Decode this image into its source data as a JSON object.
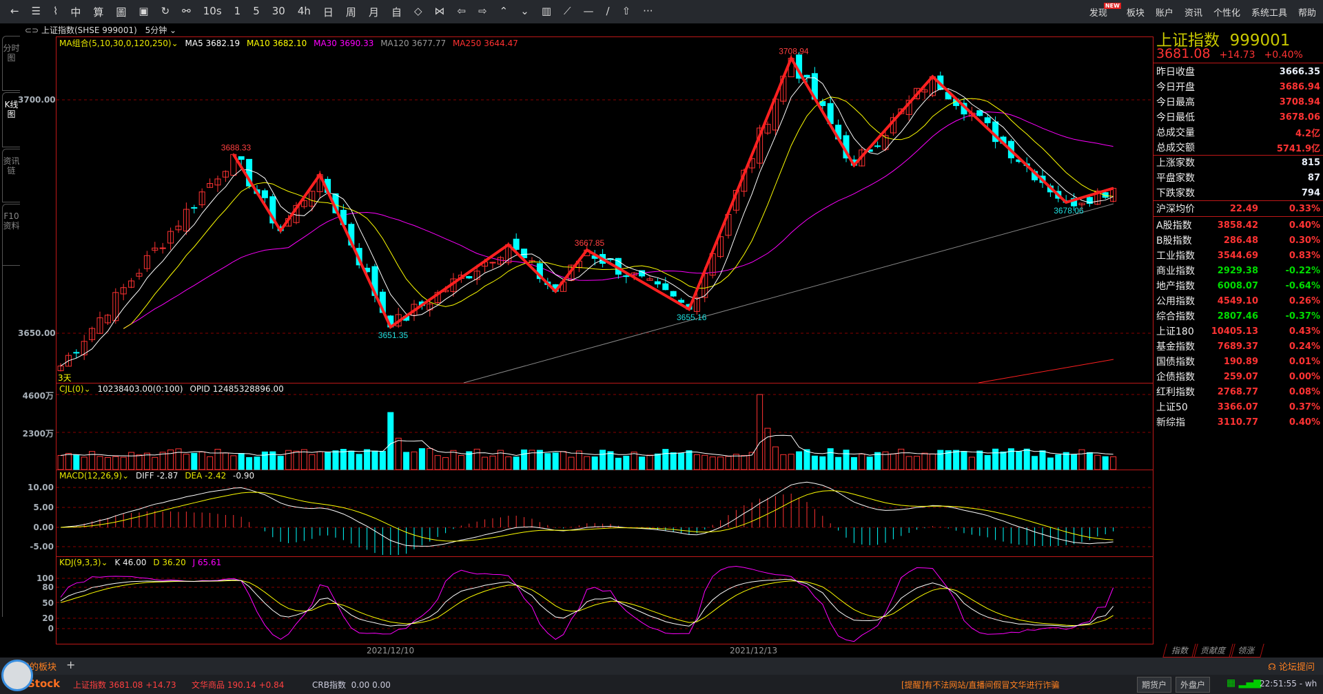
{
  "toolbar": {
    "items": [
      "←",
      "☰",
      "⌇",
      "中",
      "算",
      "圖",
      "▣",
      "↻",
      "⚯",
      "10s",
      "1",
      "5",
      "30",
      "4h",
      "日",
      "周",
      "月",
      "自",
      "◇",
      "⋈",
      "⇦",
      "⇨",
      "⌃",
      "⌄",
      "▥",
      "⟋",
      "—",
      "∕",
      "⇧",
      "···"
    ],
    "menu": [
      "发现",
      "板块",
      "账户",
      "资讯",
      "个性化",
      "系统工具",
      "帮助"
    ],
    "new_badge": "NEW"
  },
  "title_row": {
    "link_icon": "⊂⊃",
    "symbol": "上证指数(SHSE 999001)",
    "period": "5分钟"
  },
  "left_tabs": [
    "分时图",
    "K线图",
    "资讯链",
    "F10资料"
  ],
  "main_legend": {
    "combo": "MA组合(5,10,30,0,120,250)",
    "ma5": "MA5 3682.19",
    "ma10": "MA10 3682.10",
    "ma30": "MA30 3690.33",
    "ma120": "MA120 3677.77",
    "ma250": "MA250 3644.47"
  },
  "axes": {
    "price": [
      "3700.00",
      "3650.00"
    ],
    "volume": [
      "4600万",
      "2300万"
    ],
    "macd": [
      "10.00",
      "5.00",
      "0.00",
      "-5.00"
    ],
    "kdj": [
      "100",
      "80",
      "50",
      "20",
      "0"
    ],
    "dates": [
      "2021/12/10",
      "2021/12/13"
    ]
  },
  "corner_label": "3天",
  "volume_legend": {
    "name": "CJL(0)",
    "value": "10238403.00(0:100)",
    "opid": "OPID 12485328896.00"
  },
  "macd_legend": {
    "name": "MACD(12,26,9)",
    "diff": "DIFF -2.87",
    "dea": "DEA -2.42",
    "macd": "-0.90"
  },
  "kdj_legend": {
    "name": "KDJ(9,3,3)",
    "k": "K 46.00",
    "d": "D 36.20",
    "j": "J 65.61"
  },
  "colors": {
    "up": "#ff3232",
    "down": "#00ffff",
    "ma5": "#ffffff",
    "ma10": "#ffff00",
    "ma30": "#ff00ff",
    "ma120": "#888888",
    "ma250": "#ff2020",
    "zigzag": "#ff2020"
  },
  "chart_data": {
    "type": "candlestick",
    "ylim": [
      3639.4,
      3713.6
    ],
    "zigzag": [
      {
        "idx": 0,
        "price": 3643
      },
      {
        "idx": 22,
        "price": 3688.33,
        "label": "3688.33"
      },
      {
        "idx": 28,
        "price": 3672
      },
      {
        "idx": 33,
        "price": 3684
      },
      {
        "idx": 42,
        "price": 3651.35,
        "label": "3651.35"
      },
      {
        "idx": 57,
        "price": 3669
      },
      {
        "idx": 63,
        "price": 3659
      },
      {
        "idx": 67,
        "price": 3667.85,
        "label": "3667.85"
      },
      {
        "idx": 80,
        "price": 3655.16,
        "label": "3655.16"
      },
      {
        "idx": 93,
        "price": 3708.94,
        "label": "3708.94"
      },
      {
        "idx": 101,
        "price": 3686
      },
      {
        "idx": 111,
        "price": 3705
      },
      {
        "idx": 128,
        "price": 3678.06,
        "label": "3678.06"
      },
      {
        "idx": 134,
        "price": 3681.08
      }
    ],
    "volume_spikes": [
      {
        "idx": 42,
        "value": 3500
      },
      {
        "idx": 89,
        "value": 4600
      }
    ],
    "volume_ylim": [
      0,
      4600
    ]
  },
  "quote": {
    "name": "上证指数",
    "code": "999001",
    "price": "3681.08",
    "change": "+14.73",
    "pct": "+0.40%",
    "stats": [
      {
        "k": "昨日收盘",
        "v": "3666.35",
        "c": "wht"
      },
      {
        "k": "今日开盘",
        "v": "3686.94",
        "c": "red"
      },
      {
        "k": "今日最高",
        "v": "3708.94",
        "c": "red"
      },
      {
        "k": "今日最低",
        "v": "3678.06",
        "c": "red"
      },
      {
        "k": "总成交量",
        "v": "4.2亿",
        "c": "red"
      },
      {
        "k": "总成交额",
        "v": "5741.9亿",
        "c": "red"
      }
    ],
    "breadth": [
      {
        "k": "上涨家数",
        "v": "815"
      },
      {
        "k": "平盘家数",
        "v": "87"
      },
      {
        "k": "下跌家数",
        "v": "794"
      }
    ],
    "avg": {
      "k": "沪深均价",
      "v": "22.49",
      "p": "0.33%"
    },
    "indices": [
      {
        "k": "A股指数",
        "v": "3858.42",
        "p": "0.40%",
        "c": "red"
      },
      {
        "k": "B股指数",
        "v": "286.48",
        "p": "0.30%",
        "c": "red"
      },
      {
        "k": "工业指数",
        "v": "3544.69",
        "p": "0.83%",
        "c": "red"
      },
      {
        "k": "商业指数",
        "v": "2929.38",
        "p": "-0.22%",
        "c": "grn"
      },
      {
        "k": "地产指数",
        "v": "6008.07",
        "p": "-0.64%",
        "c": "grn"
      },
      {
        "k": "公用指数",
        "v": "4549.10",
        "p": "0.26%",
        "c": "red"
      },
      {
        "k": "综合指数",
        "v": "2807.46",
        "p": "-0.37%",
        "c": "grn"
      },
      {
        "k": "上证180",
        "v": "10405.13",
        "p": "0.43%",
        "c": "red"
      },
      {
        "k": "基金指数",
        "v": "7689.37",
        "p": "0.24%",
        "c": "red"
      },
      {
        "k": "国债指数",
        "v": "190.89",
        "p": "0.01%",
        "c": "red"
      },
      {
        "k": "企债指数",
        "v": "259.07",
        "p": "0.00%",
        "c": "red"
      },
      {
        "k": "红利指数",
        "v": "2768.77",
        "p": "0.08%",
        "c": "red"
      },
      {
        "k": "上证50",
        "v": "3366.07",
        "p": "0.37%",
        "c": "red"
      },
      {
        "k": "新综指",
        "v": "3110.77",
        "p": "0.40%",
        "c": "red"
      }
    ],
    "tabs": [
      "指数",
      "贡献度",
      "领涨"
    ]
  },
  "tabbar": {
    "tab": "我的板块",
    "add": "+",
    "forum": "论坛提问"
  },
  "status": {
    "brand": "Stock",
    "sh": "上证指数 3681.08 +14.73",
    "wh": "文华商品 190.14 +0.84",
    "crb_label": "CRB指数",
    "crb": "0.00 0.00",
    "notice": "[提醒]有不法网站/直播间假冒文华进行诈骗",
    "futures": "期货户",
    "foreign": "外盘户",
    "time": "22:51:55 - wh"
  }
}
